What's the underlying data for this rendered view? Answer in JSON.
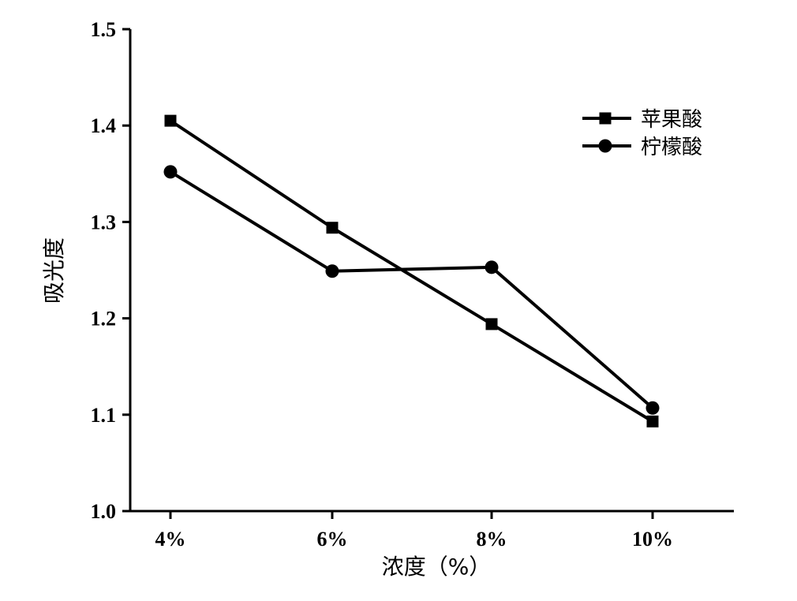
{
  "chart_data": {
    "type": "line",
    "title": "",
    "xlabel": "浓度（%）",
    "ylabel": "吸光度",
    "categories": [
      "4%",
      "6%",
      "8%",
      "10%"
    ],
    "ylim": [
      1.0,
      1.5
    ],
    "yticks": [
      "1.0",
      "1.1",
      "1.2",
      "1.3",
      "1.4",
      "1.5"
    ],
    "grid": false,
    "legend_position": "top-right",
    "series": [
      {
        "name": "苹果酸",
        "marker": "square",
        "values": [
          1.405,
          1.294,
          1.194,
          1.093
        ]
      },
      {
        "name": "柠檬酸",
        "marker": "circle",
        "values": [
          1.352,
          1.249,
          1.253,
          1.107
        ]
      }
    ],
    "colors": {
      "line": "#000000",
      "axis": "#000000"
    }
  }
}
